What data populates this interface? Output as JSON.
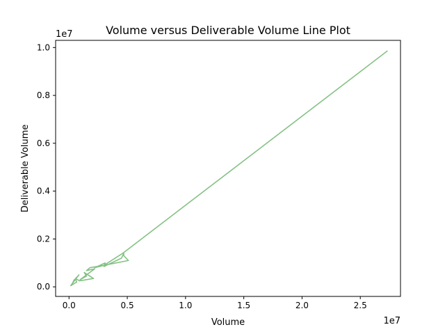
{
  "chart_data": {
    "type": "line",
    "title": "Volume versus Deliverable Volume Line Plot",
    "xlabel": "Volume",
    "ylabel": "Deliverable Volume",
    "x_offset_label": "1e7",
    "y_offset_label": "1e7",
    "xlim": [
      -1150000,
      28450000
    ],
    "ylim": [
      -400000,
      10300000
    ],
    "x_ticks": [
      0,
      5000000,
      10000000,
      15000000,
      20000000,
      25000000
    ],
    "x_tick_labels": [
      "0.0",
      "0.5",
      "1.0",
      "1.5",
      "2.0",
      "2.5"
    ],
    "y_ticks": [
      0,
      2000000,
      4000000,
      6000000,
      8000000,
      10000000
    ],
    "y_tick_labels": [
      "0.0",
      "0.2",
      "0.4",
      "0.6",
      "0.8",
      "1.0"
    ],
    "grid": false,
    "color": "#84c184",
    "series": [
      {
        "x": [
          200000,
          450000,
          300000,
          850000,
          400000,
          650000,
          150000,
          650000,
          550000,
          900000,
          2100000,
          1300000,
          1500000,
          950000,
          2200000,
          1500000,
          1800000,
          3000000,
          2200000,
          3100000,
          3000000,
          4500000,
          4700000,
          4700000,
          5100000,
          3000000,
          4600000,
          27300000
        ],
        "y": [
          60000,
          300000,
          150000,
          500000,
          250000,
          400000,
          50000,
          200000,
          350000,
          250000,
          350000,
          600000,
          450000,
          300000,
          750000,
          680000,
          800000,
          900000,
          800000,
          1000000,
          850000,
          1200000,
          1400000,
          1300000,
          1100000,
          900000,
          1400000,
          9850000
        ]
      }
    ]
  }
}
